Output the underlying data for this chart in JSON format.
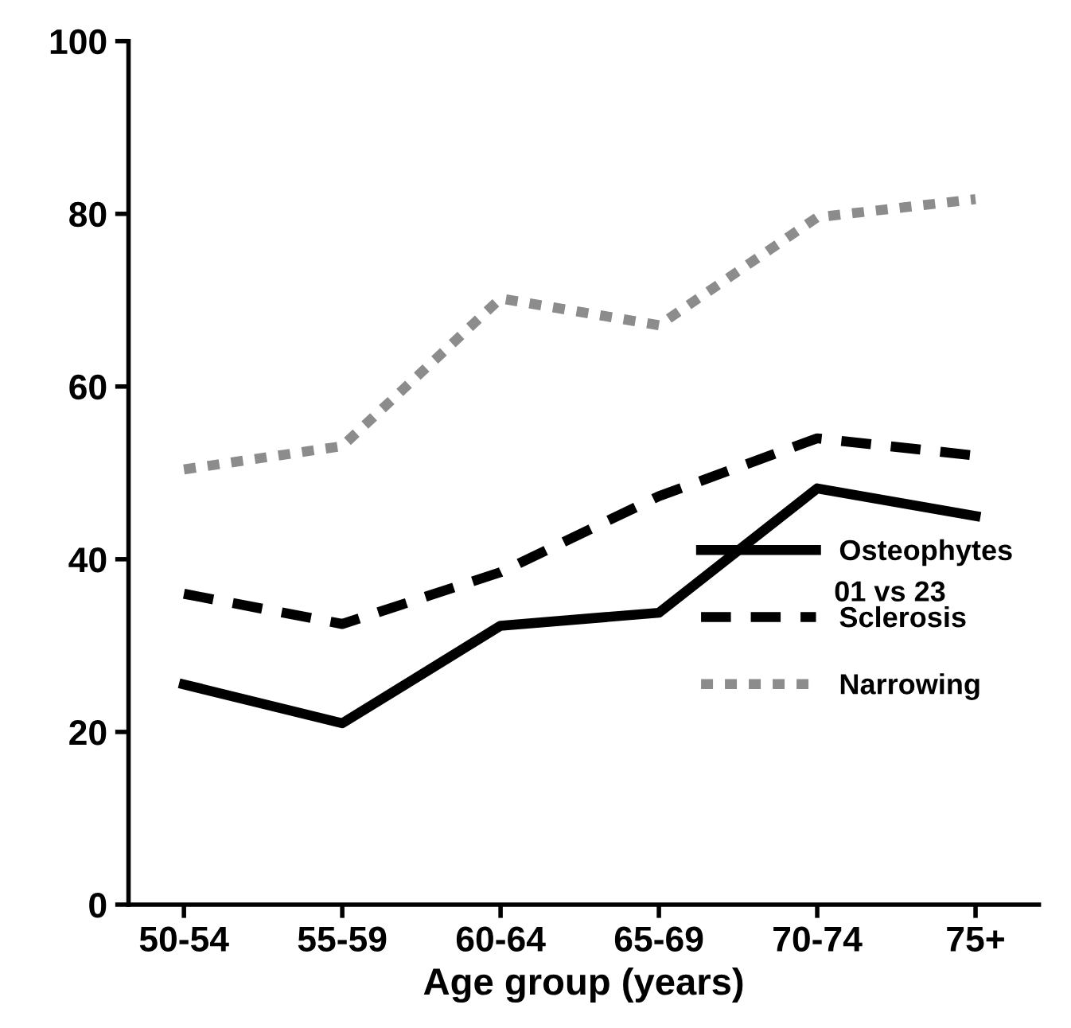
{
  "chart_data": {
    "type": "line",
    "xlabel": "Age group (years)",
    "categories": [
      "50-54",
      "55-59",
      "60-64",
      "65-69",
      "70-74",
      "75+"
    ],
    "series": [
      {
        "name": "Osteophytes",
        "color": "#000000",
        "line_style": "solid",
        "values": [
          25.5,
          21,
          32.3,
          33.8,
          48.2,
          45
        ]
      },
      {
        "name": "Sclerosis",
        "color": "#000000",
        "line_style": "dashed",
        "values": [
          36,
          32.5,
          38.5,
          47.3,
          54,
          52
        ]
      },
      {
        "name": "Narrowing",
        "color": "#8c8c8c",
        "line_style": "dotted",
        "values": [
          50.4,
          53.1,
          70.2,
          67.1,
          79.6,
          81.7
        ]
      }
    ],
    "annotations": [
      "01 vs 23"
    ],
    "ylim": [
      0,
      100
    ],
    "yticks": [
      0,
      20,
      40,
      60,
      80,
      100
    ],
    "grid": false,
    "legend": "right",
    "marker": "none"
  }
}
